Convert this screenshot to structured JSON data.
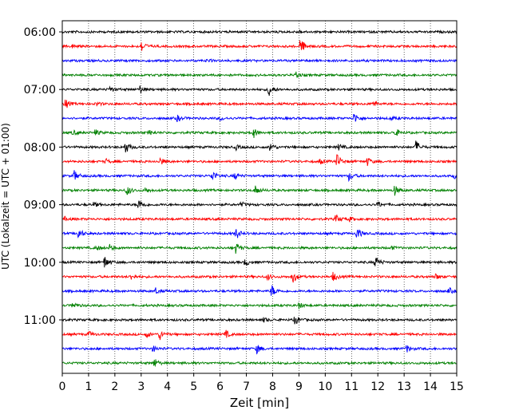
{
  "chart_data": {
    "type": "line",
    "title": "",
    "xlabel": "Zeit  [min]",
    "ylabel": "UTC (Lokalzeit = UTC + 01:00)",
    "xlim": [
      0,
      15
    ],
    "x_ticks": [
      0,
      1,
      2,
      3,
      4,
      5,
      6,
      7,
      8,
      9,
      10,
      11,
      12,
      13,
      14,
      15
    ],
    "x_tick_labels": [
      "0",
      "1",
      "2",
      "3",
      "4",
      "5",
      "6",
      "7",
      "8",
      "9",
      "10",
      "11",
      "12",
      "13",
      "14",
      "15"
    ],
    "y_tick_labels": [
      "06:00",
      "07:00",
      "08:00",
      "09:00",
      "10:00",
      "11:00"
    ],
    "grid": "vertical dotted",
    "row_colors": [
      "#000000",
      "#ff0000",
      "#0000ff",
      "#008000"
    ],
    "row_count": 24,
    "row_interval_minutes": 15,
    "start_time": "06:00",
    "series": [
      {
        "time": "06:00",
        "events": [
          [
            9.0,
            0.2
          ]
        ]
      },
      {
        "time": "06:15",
        "events": [
          [
            0.35,
            0.4
          ],
          [
            3.0,
            1.0
          ],
          [
            9.05,
            1.4
          ]
        ]
      },
      {
        "time": "06:30",
        "events": [
          [
            5.5,
            0.2
          ]
        ]
      },
      {
        "time": "06:45",
        "events": [
          [
            8.85,
            0.6
          ]
        ]
      },
      {
        "time": "07:00",
        "events": [
          [
            1.8,
            0.5
          ],
          [
            2.95,
            0.7
          ],
          [
            7.85,
            1.2
          ]
        ]
      },
      {
        "time": "07:15",
        "events": [
          [
            0.1,
            0.9
          ],
          [
            1.3,
            0.3
          ],
          [
            11.8,
            0.5
          ]
        ]
      },
      {
        "time": "07:30",
        "events": [
          [
            4.35,
            0.6
          ],
          [
            6.0,
            0.3
          ],
          [
            11.1,
            1.0
          ],
          [
            12.5,
            0.3
          ]
        ]
      },
      {
        "time": "07:45",
        "events": [
          [
            0.4,
            0.4
          ],
          [
            1.25,
            0.5
          ],
          [
            3.3,
            0.4
          ],
          [
            7.25,
            1.0
          ],
          [
            12.65,
            0.7
          ]
        ]
      },
      {
        "time": "08:00",
        "events": [
          [
            2.4,
            1.1
          ],
          [
            6.6,
            0.4
          ],
          [
            7.9,
            0.8
          ],
          [
            10.5,
            0.5
          ],
          [
            13.45,
            1.1
          ]
        ]
      },
      {
        "time": "08:15",
        "events": [
          [
            1.65,
            0.4
          ],
          [
            3.7,
            0.7
          ],
          [
            9.8,
            0.4
          ],
          [
            10.45,
            1.3
          ],
          [
            11.6,
            0.7
          ]
        ]
      },
      {
        "time": "08:30",
        "events": [
          [
            0.45,
            0.9
          ],
          [
            5.7,
            1.0
          ],
          [
            6.55,
            0.6
          ],
          [
            10.9,
            0.8
          ],
          [
            14.9,
            0.4
          ]
        ]
      },
      {
        "time": "08:45",
        "events": [
          [
            2.45,
            0.9
          ],
          [
            3.15,
            0.4
          ],
          [
            7.35,
            0.8
          ],
          [
            12.6,
            1.1
          ]
        ]
      },
      {
        "time": "09:00",
        "events": [
          [
            1.2,
            0.4
          ],
          [
            2.9,
            1.0
          ],
          [
            6.8,
            0.4
          ],
          [
            12.0,
            0.5
          ]
        ]
      },
      {
        "time": "09:15",
        "events": [
          [
            0.1,
            0.3
          ],
          [
            10.4,
            0.8
          ],
          [
            10.9,
            0.4
          ]
        ]
      },
      {
        "time": "09:30",
        "events": [
          [
            0.6,
            1.0
          ],
          [
            6.6,
            1.0
          ],
          [
            11.2,
            1.1
          ]
        ]
      },
      {
        "time": "09:45",
        "events": [
          [
            1.3,
            0.4
          ],
          [
            1.8,
            0.5
          ],
          [
            6.6,
            0.9
          ],
          [
            12.5,
            0.3
          ]
        ]
      },
      {
        "time": "10:00",
        "events": [
          [
            1.6,
            1.1
          ],
          [
            6.95,
            0.6
          ],
          [
            11.9,
            1.2
          ]
        ]
      },
      {
        "time": "10:15",
        "events": [
          [
            2.6,
            0.5
          ],
          [
            7.8,
            0.5
          ],
          [
            8.75,
            1.2
          ],
          [
            10.3,
            0.8
          ],
          [
            14.2,
            0.5
          ]
        ]
      },
      {
        "time": "10:30",
        "events": [
          [
            3.55,
            0.5
          ],
          [
            7.95,
            1.1
          ],
          [
            14.7,
            0.5
          ]
        ]
      },
      {
        "time": "10:45",
        "events": [
          [
            0.4,
            0.6
          ],
          [
            9.0,
            0.5
          ]
        ]
      },
      {
        "time": "11:00",
        "events": [
          [
            7.65,
            0.4
          ],
          [
            8.85,
            0.9
          ]
        ]
      },
      {
        "time": "11:15",
        "events": [
          [
            1.0,
            0.5
          ],
          [
            3.2,
            0.5
          ],
          [
            3.7,
            0.9
          ],
          [
            6.2,
            0.7
          ]
        ]
      },
      {
        "time": "11:30",
        "events": [
          [
            3.45,
            0.5
          ],
          [
            7.4,
            0.8
          ],
          [
            13.1,
            0.6
          ]
        ]
      },
      {
        "time": "11:45",
        "events": [
          [
            3.5,
            0.8
          ]
        ]
      }
    ]
  }
}
